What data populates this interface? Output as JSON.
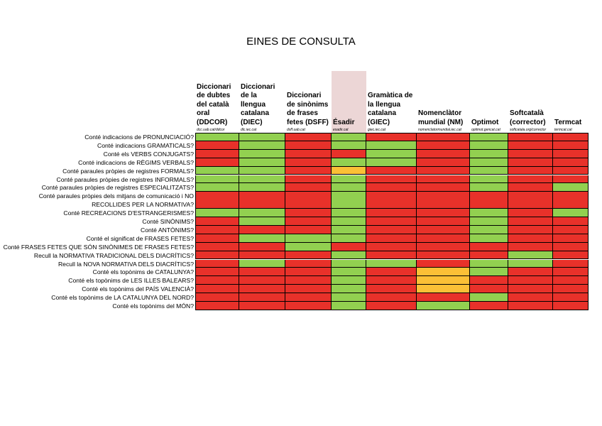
{
  "title": "EINES DE CONSULTA",
  "columns": [
    {
      "lines": [
        "Diccionari",
        "de dubtes",
        "del català",
        "oral",
        "(DDCOR)"
      ],
      "url": "dcc.uab.cat/ddcor"
    },
    {
      "lines": [
        "Diccionari",
        "de la",
        "llengua",
        "catalana",
        "(DIEC)"
      ],
      "url": "dlc.iec.cat"
    },
    {
      "lines": [
        "Diccionari",
        "de sinònims",
        "de frases",
        "fetes (DSFF)"
      ],
      "url": "dsff.uab.cat"
    },
    {
      "lines": [
        "Ésadir"
      ],
      "url": "esadir.cat"
    },
    {
      "lines": [
        "Gramàtica de",
        "la llengua",
        "catalana",
        "(GIEC)"
      ],
      "url": "giec.iec.cat"
    },
    {
      "lines": [
        "Nomenclàtor",
        "mundial (NM)"
      ],
      "url": "nomenclatormundial.iec.cat"
    },
    {
      "lines": [
        "Optimot"
      ],
      "url": "optimot.gencat.cat"
    },
    {
      "lines": [
        "Softcatalà",
        "(corrector)"
      ],
      "url": "softcatala.org/corrector"
    },
    {
      "lines": [
        "Termcat"
      ],
      "url": "termcat.cat"
    }
  ],
  "rows": [
    {
      "lines": [
        "Conté indicacions de PRONUNCIACIÓ?"
      ],
      "cells": [
        "#92d050",
        "#92d050",
        "#e8312a",
        "#92d050",
        "#e8312a",
        "#e8312a",
        "#92d050",
        "#e8312a",
        "#e8312a"
      ]
    },
    {
      "lines": [
        "Conté indicacions GRAMATICALS?"
      ],
      "cells": [
        "#e8312a",
        "#92d050",
        "#e8312a",
        "#92d050",
        "#92d050",
        "#e8312a",
        "#92d050",
        "#e8312a",
        "#e8312a"
      ]
    },
    {
      "lines": [
        "Conté els VERBS CONJUGATS?"
      ],
      "cells": [
        "#e8312a",
        "#92d050",
        "#e8312a",
        "#e8312a",
        "#92d050",
        "#e8312a",
        "#92d050",
        "#e8312a",
        "#e8312a"
      ]
    },
    {
      "lines": [
        "Conté indicacions de RÈGIMS VERBALS?"
      ],
      "cells": [
        "#e8312a",
        "#92d050",
        "#e8312a",
        "#92d050",
        "#92d050",
        "#e8312a",
        "#92d050",
        "#e8312a",
        "#e8312a"
      ]
    },
    {
      "lines": [
        "Conté paraules pròpies de registres FORMALS?"
      ],
      "cells": [
        "#92d050",
        "#92d050",
        "#e8312a",
        "#fbc036",
        "#e8312a",
        "#e8312a",
        "#92d050",
        "#e8312a",
        "#e8312a"
      ]
    },
    {
      "lines": [
        "Conté paraules pròpies de registres INFORMALS?"
      ],
      "cells": [
        "#92d050",
        "#92d050",
        "#e8312a",
        "#92d050",
        "#e8312a",
        "#e8312a",
        "#92d050",
        "#e8312a",
        "#e8312a"
      ]
    },
    {
      "lines": [
        "Conté paraules pròpies de registres ESPECIALITZATS?"
      ],
      "cells": [
        "#92d050",
        "#92d050",
        "#e8312a",
        "#92d050",
        "#e8312a",
        "#e8312a",
        "#92d050",
        "#e8312a",
        "#92d050"
      ]
    },
    {
      "lines": [
        "Conté paraules pròpies dels mitjans de comunicació i NO",
        "RECOLLIDES PER LA NORMATIVA?"
      ],
      "cells": [
        "#e8312a",
        "#e8312a",
        "#e8312a",
        "#92d050",
        "#e8312a",
        "#e8312a",
        "#e8312a",
        "#e8312a",
        "#e8312a"
      ]
    },
    {
      "lines": [
        "Conté RECREACIONS D'ESTRANGERISMES?"
      ],
      "cells": [
        "#92d050",
        "#92d050",
        "#e8312a",
        "#92d050",
        "#e8312a",
        "#e8312a",
        "#92d050",
        "#e8312a",
        "#92d050"
      ]
    },
    {
      "lines": [
        "Conté SINÒNIMS?"
      ],
      "cells": [
        "#e8312a",
        "#92d050",
        "#e8312a",
        "#92d050",
        "#e8312a",
        "#e8312a",
        "#92d050",
        "#e8312a",
        "#e8312a"
      ]
    },
    {
      "lines": [
        "Conté ANTÒNIMS?"
      ],
      "cells": [
        "#e8312a",
        "#e8312a",
        "#e8312a",
        "#92d050",
        "#e8312a",
        "#e8312a",
        "#92d050",
        "#e8312a",
        "#e8312a"
      ]
    },
    {
      "lines": [
        "Conté el significat de FRASES FETES?"
      ],
      "cells": [
        "#e8312a",
        "#92d050",
        "#92d050",
        "#92d050",
        "#e8312a",
        "#e8312a",
        "#92d050",
        "#e8312a",
        "#e8312a"
      ]
    },
    {
      "lines": [
        "Conté FRASES FETES QUE SÓN SINÒNIMES DE FRASES FETES?"
      ],
      "cells": [
        "#e8312a",
        "#e8312a",
        "#92d050",
        "#e8312a",
        "#e8312a",
        "#e8312a",
        "#e8312a",
        "#e8312a",
        "#e8312a"
      ]
    },
    {
      "lines": [
        "Recull la NORMATIVA TRADICIONAL DELS DIACRÍTICS?"
      ],
      "cells": [
        "#e8312a",
        "#e8312a",
        "#e8312a",
        "#92d050",
        "#e8312a",
        "#e8312a",
        "#e8312a",
        "#92d050",
        "#e8312a"
      ]
    },
    {
      "lines": [
        "Recull la NOVA NORMATIVA DELS DIACRÍTICS?"
      ],
      "cells": [
        "#e8312a",
        "#92d050",
        "#e8312a",
        "#92d050",
        "#92d050",
        "#e8312a",
        "#92d050",
        "#92d050",
        "#e8312a"
      ]
    },
    {
      "lines": [
        "Conté els topònims de CATALUNYA?"
      ],
      "cells": [
        "#e8312a",
        "#e8312a",
        "#e8312a",
        "#92d050",
        "#e8312a",
        "#fbc036",
        "#92d050",
        "#e8312a",
        "#e8312a"
      ]
    },
    {
      "lines": [
        "Conté els topònims de LES ILLES BALEARS?"
      ],
      "cells": [
        "#e8312a",
        "#e8312a",
        "#e8312a",
        "#92d050",
        "#e8312a",
        "#fbc036",
        "#e8312a",
        "#e8312a",
        "#e8312a"
      ]
    },
    {
      "lines": [
        "Conté els topònims del PAÍS VALENCIÀ?"
      ],
      "cells": [
        "#e8312a",
        "#e8312a",
        "#e8312a",
        "#92d050",
        "#e8312a",
        "#fbc036",
        "#e8312a",
        "#e8312a",
        "#e8312a"
      ]
    },
    {
      "lines": [
        "Conté els topònims de LA CATALUNYA DEL NORD?"
      ],
      "cells": [
        "#e8312a",
        "#e8312a",
        "#e8312a",
        "#92d050",
        "#e8312a",
        "#e8312a",
        "#92d050",
        "#e8312a",
        "#e8312a"
      ]
    },
    {
      "lines": [
        "Conté els topònims del MÓN?"
      ],
      "cells": [
        "#e8312a",
        "#e8312a",
        "#e8312a",
        "#92d050",
        "#e8312a",
        "#92d050",
        "#e8312a",
        "#e8312a",
        "#e8312a"
      ]
    }
  ]
}
